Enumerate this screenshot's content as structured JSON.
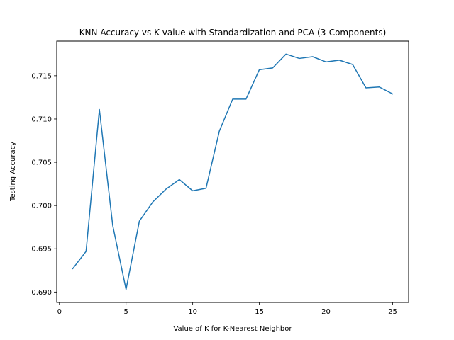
{
  "chart_data": {
    "type": "line",
    "title": "KNN Accuracy vs K value with Standardization and PCA (3-Components)",
    "xlabel": "Value of K for K-Nearest Neighbor",
    "ylabel": "Testing Accuracy",
    "xlim": [
      -0.2,
      26.2
    ],
    "ylim": [
      0.6888,
      0.719
    ],
    "xticks": [
      0,
      5,
      10,
      15,
      20,
      25
    ],
    "xtick_labels": [
      "0",
      "5",
      "10",
      "15",
      "20",
      "25"
    ],
    "yticks": [
      0.69,
      0.695,
      0.7,
      0.705,
      0.71,
      0.715
    ],
    "ytick_labels": [
      "0.690",
      "0.695",
      "0.700",
      "0.705",
      "0.710",
      "0.715"
    ],
    "grid": false,
    "series": [
      {
        "color": "#1f77b4",
        "x": [
          1,
          2,
          3,
          4,
          5,
          6,
          7,
          8,
          9,
          10,
          11,
          12,
          13,
          14,
          15,
          16,
          17,
          18,
          19,
          20,
          21,
          22,
          23,
          24,
          25
        ],
        "y": [
          0.6927,
          0.6947,
          0.7111,
          0.6977,
          0.6903,
          0.6982,
          0.7004,
          0.7019,
          0.703,
          0.7017,
          0.702,
          0.7086,
          0.7123,
          0.7123,
          0.7157,
          0.7159,
          0.7175,
          0.717,
          0.7172,
          0.7166,
          0.7168,
          0.7163,
          0.7136,
          0.7137,
          0.7129
        ]
      }
    ]
  }
}
